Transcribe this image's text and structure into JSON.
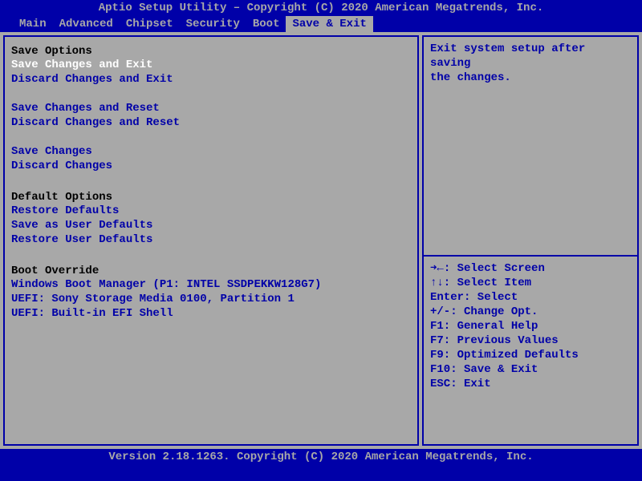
{
  "header": "Aptio Setup Utility – Copyright (C) 2020 American Megatrends, Inc.",
  "footer": "Version 2.18.1263. Copyright (C) 2020 American Megatrends, Inc.",
  "tabs": [
    "Main",
    "Advanced",
    "Chipset",
    "Security",
    "Boot",
    "Save & Exit"
  ],
  "active_tab_index": 5,
  "left": {
    "sections": [
      {
        "header": "Save Options",
        "items": [
          {
            "label": "Save Changes and Exit",
            "selected": true
          },
          {
            "label": "Discard Changes and Exit"
          }
        ]
      },
      {
        "items": [
          {
            "label": "Save Changes and Reset"
          },
          {
            "label": "Discard Changes and Reset"
          }
        ]
      },
      {
        "items": [
          {
            "label": "Save Changes"
          },
          {
            "label": "Discard Changes"
          }
        ]
      },
      {
        "header": "Default Options",
        "items": [
          {
            "label": "Restore Defaults"
          },
          {
            "label": "Save as User Defaults"
          },
          {
            "label": "Restore User Defaults"
          }
        ]
      },
      {
        "header": "Boot Override",
        "items": [
          {
            "label": "Windows Boot Manager (P1: INTEL SSDPEKKW128G7)"
          },
          {
            "label": "UEFI: Sony Storage Media 0100, Partition 1"
          },
          {
            "label": "UEFI: Built-in EFI Shell"
          }
        ]
      }
    ]
  },
  "help": {
    "description_line1": "Exit system setup after saving",
    "description_line2": "the changes.",
    "keys": [
      "➜←: Select Screen",
      "↑↓: Select Item",
      "Enter: Select",
      "+/-: Change Opt.",
      "F1: General Help",
      "F7: Previous Values",
      "F9: Optimized Defaults",
      "F10: Save & Exit",
      "ESC: Exit"
    ]
  },
  "colors": {
    "background": "#0000a8",
    "panel_bg": "#a8a8a8",
    "text_link": "#0000a8",
    "text_header": "#000000",
    "text_selected": "#ffffff",
    "text_dim": "#a8a8a8"
  }
}
